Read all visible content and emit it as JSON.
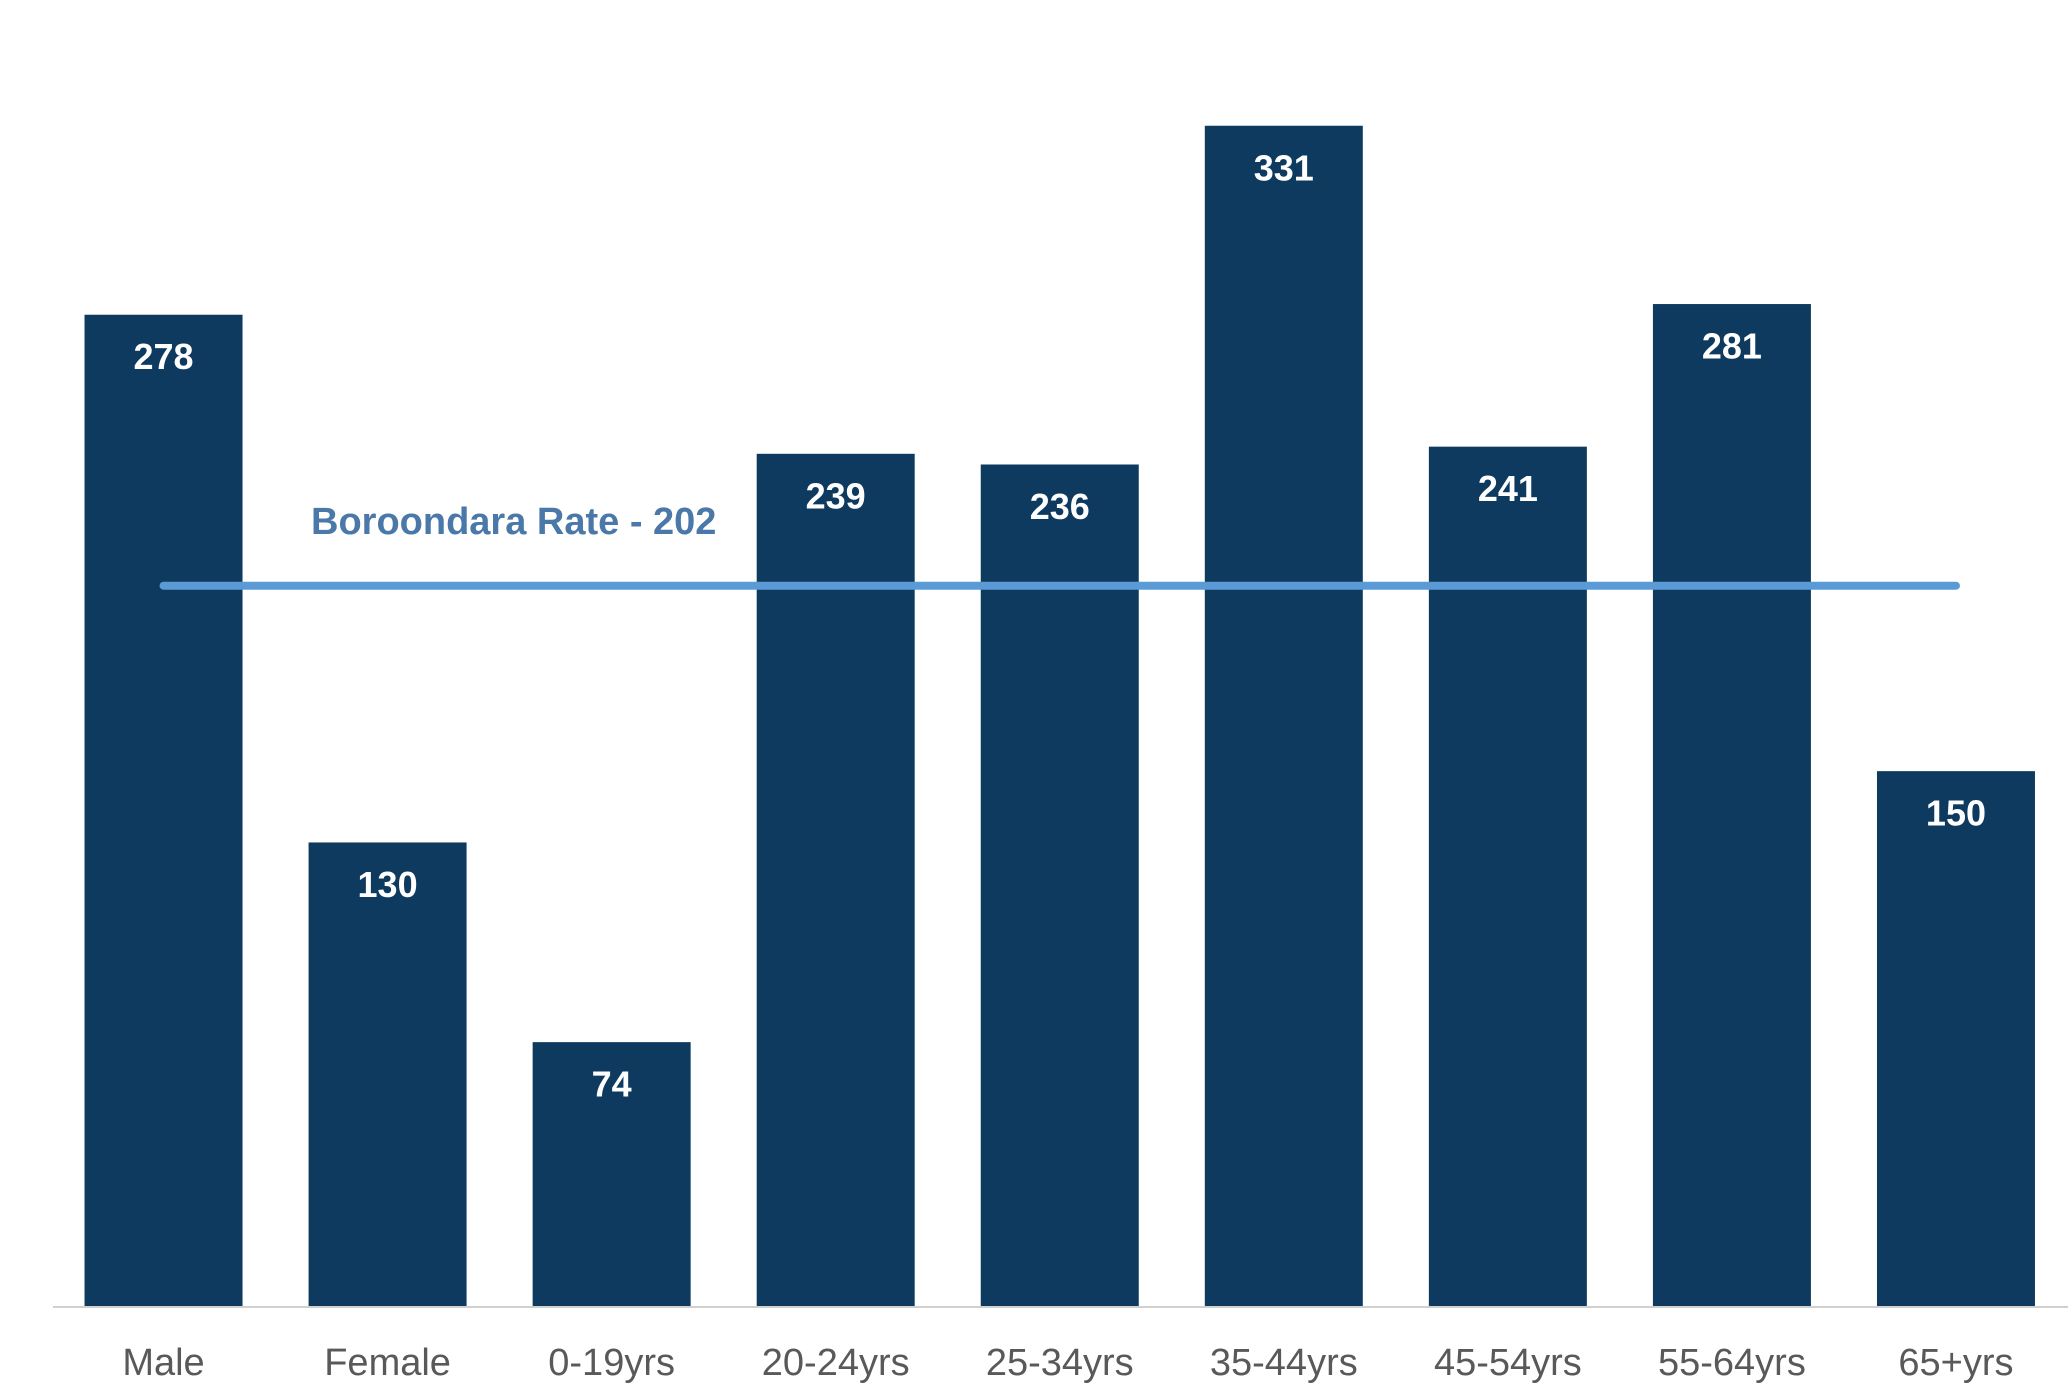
{
  "chart_data": {
    "type": "bar",
    "categories": [
      "Male",
      "Female",
      "0-19yrs",
      "20-24yrs",
      "25-34yrs",
      "35-44yrs",
      "45-54yrs",
      "55-64yrs",
      "65+yrs"
    ],
    "values": [
      278,
      130,
      74,
      239,
      236,
      331,
      241,
      281,
      150
    ],
    "color": "#0e3a60",
    "ylim": [
      0,
      350
    ],
    "reference_line": {
      "label": "Boroondara Rate - 202",
      "value": 202,
      "color": "#5b9bd5"
    }
  }
}
